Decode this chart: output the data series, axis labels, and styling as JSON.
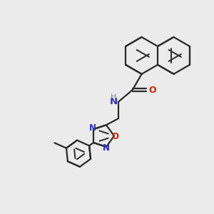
{
  "bg_color": "#ebebeb",
  "bond_color": "#2a2a2a",
  "n_color": "#3030bb",
  "o_color": "#cc2200",
  "h_color": "#7090a0",
  "lw": 1.6,
  "lw_inner": 1.4,
  "dbo": 0.055,
  "figsize": [
    3.0,
    3.0
  ],
  "dpi": 100,
  "xlim": [
    0.0,
    10.0
  ],
  "ylim": [
    0.0,
    10.0
  ]
}
